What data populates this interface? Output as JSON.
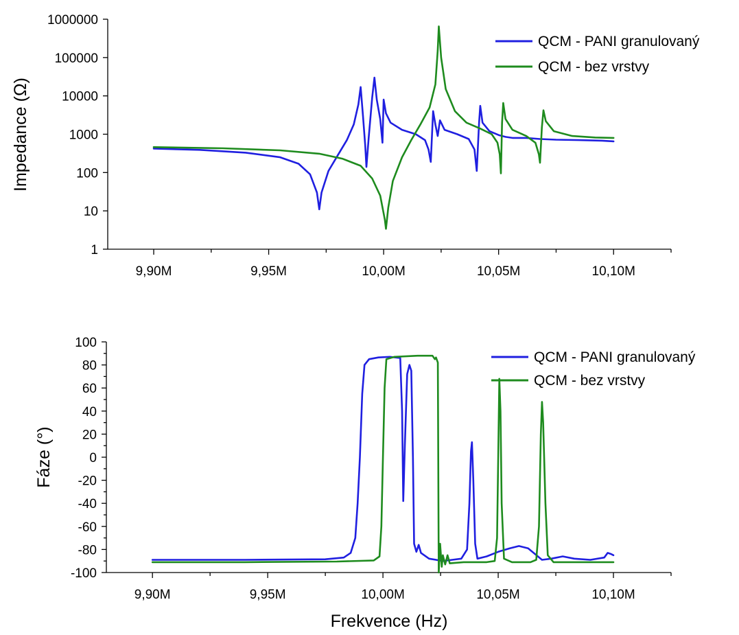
{
  "chart_data": [
    {
      "type": "line",
      "title": "",
      "xlabel": "",
      "ylabel": "Impedance (Ω)",
      "yscale": "log",
      "xlim": [
        9880000,
        10125000
      ],
      "ylim": [
        1,
        1000000
      ],
      "x_ticks": [
        {
          "value": 9900000,
          "label": "9,90M"
        },
        {
          "value": 9950000,
          "label": "9,95M"
        },
        {
          "value": 10000000,
          "label": "10,00M"
        },
        {
          "value": 10050000,
          "label": "10,05M"
        },
        {
          "value": 10100000,
          "label": "10,10M"
        }
      ],
      "y_ticks": [
        {
          "value": 1,
          "label": "1"
        },
        {
          "value": 10,
          "label": "10"
        },
        {
          "value": 100,
          "label": "100"
        },
        {
          "value": 1000,
          "label": "1000"
        },
        {
          "value": 10000,
          "label": "10000"
        },
        {
          "value": 100000,
          "label": "100000"
        },
        {
          "value": 1000000,
          "label": "1000000"
        }
      ],
      "grid": false,
      "legend_position": "top-right",
      "series": [
        {
          "name": "QCM - PANI granulovaný",
          "color": "#1f1fe0",
          "points": [
            [
              9900000,
              420
            ],
            [
              9920000,
              390
            ],
            [
              9940000,
              330
            ],
            [
              9955000,
              250
            ],
            [
              9963000,
              170
            ],
            [
              9968000,
              90
            ],
            [
              9971000,
              30
            ],
            [
              9972000,
              11
            ],
            [
              9973000,
              30
            ],
            [
              9976000,
              110
            ],
            [
              9980000,
              280
            ],
            [
              9984000,
              700
            ],
            [
              9987000,
              1800
            ],
            [
              9989000,
              6000
            ],
            [
              9990000,
              17000
            ],
            [
              9991000,
              3000
            ],
            [
              9992000,
              500
            ],
            [
              9992500,
              140
            ],
            [
              9993500,
              800
            ],
            [
              9995000,
              9000
            ],
            [
              9996000,
              30000
            ],
            [
              9997000,
              8000
            ],
            [
              9998500,
              2500
            ],
            [
              9999500,
              600
            ],
            [
              10000000,
              8000
            ],
            [
              10001000,
              3500
            ],
            [
              10003000,
              2000
            ],
            [
              10008000,
              1300
            ],
            [
              10014000,
              1000
            ],
            [
              10018000,
              700
            ],
            [
              10019500,
              400
            ],
            [
              10020500,
              190
            ],
            [
              10021500,
              4000
            ],
            [
              10022500,
              1800
            ],
            [
              10023500,
              900
            ],
            [
              10024500,
              2300
            ],
            [
              10026500,
              1300
            ],
            [
              10032000,
              1000
            ],
            [
              10037000,
              750
            ],
            [
              10039500,
              400
            ],
            [
              10040500,
              110
            ],
            [
              10041500,
              2000
            ],
            [
              10042000,
              5500
            ],
            [
              10043000,
              2000
            ],
            [
              10046000,
              1200
            ],
            [
              10050000,
              950
            ],
            [
              10053000,
              850
            ],
            [
              10056000,
              800
            ],
            [
              10062000,
              800
            ],
            [
              10068000,
              750
            ],
            [
              10075000,
              720
            ],
            [
              10085000,
              700
            ],
            [
              10095000,
              680
            ],
            [
              10100000,
              650
            ]
          ]
        },
        {
          "name": "QCM - bez vrstvy",
          "color": "#1e8b1e",
          "points": [
            [
              9900000,
              460
            ],
            [
              9930000,
              430
            ],
            [
              9955000,
              380
            ],
            [
              9972000,
              310
            ],
            [
              9982000,
              230
            ],
            [
              9990000,
              150
            ],
            [
              9995000,
              70
            ],
            [
              9998500,
              25
            ],
            [
              10000500,
              6
            ],
            [
              10001000,
              3.4
            ],
            [
              10002000,
              12
            ],
            [
              10004000,
              60
            ],
            [
              10008000,
              250
            ],
            [
              10012000,
              700
            ],
            [
              10016000,
              1800
            ],
            [
              10020000,
              5000
            ],
            [
              10022500,
              20000
            ],
            [
              10023500,
              150000
            ],
            [
              10024000,
              650000
            ],
            [
              10025000,
              100000
            ],
            [
              10027000,
              15000
            ],
            [
              10031000,
              4000
            ],
            [
              10036000,
              2000
            ],
            [
              10042000,
              1400
            ],
            [
              10047000,
              1000
            ],
            [
              10049500,
              600
            ],
            [
              10050500,
              300
            ],
            [
              10051000,
              95
            ],
            [
              10051500,
              2000
            ],
            [
              10052000,
              6500
            ],
            [
              10053000,
              2500
            ],
            [
              10056000,
              1300
            ],
            [
              10062000,
              900
            ],
            [
              10066000,
              600
            ],
            [
              10067500,
              300
            ],
            [
              10068000,
              180
            ],
            [
              10068800,
              1500
            ],
            [
              10069500,
              4200
            ],
            [
              10070500,
              2200
            ],
            [
              10074000,
              1200
            ],
            [
              10082000,
              900
            ],
            [
              10092000,
              820
            ],
            [
              10100000,
              800
            ]
          ]
        }
      ]
    },
    {
      "type": "line",
      "title": "",
      "xlabel": "Frekvence (Hz)",
      "ylabel": "Fáze (°)",
      "yscale": "linear",
      "xlim": [
        9880000,
        10125000
      ],
      "ylim": [
        -100,
        100
      ],
      "x_ticks": [
        {
          "value": 9900000,
          "label": "9,90M"
        },
        {
          "value": 9950000,
          "label": "9,95M"
        },
        {
          "value": 10000000,
          "label": "10,00M"
        },
        {
          "value": 10050000,
          "label": "10,05M"
        },
        {
          "value": 10100000,
          "label": "10,10M"
        }
      ],
      "y_ticks": [
        {
          "value": 100,
          "label": "100"
        },
        {
          "value": 80,
          "label": "80"
        },
        {
          "value": 60,
          "label": "60"
        },
        {
          "value": 40,
          "label": "40"
        },
        {
          "value": 20,
          "label": "20"
        },
        {
          "value": 0,
          "label": "0"
        },
        {
          "value": -20,
          "label": "-20"
        },
        {
          "value": -40,
          "label": "-40"
        },
        {
          "value": -60,
          "label": "-60"
        },
        {
          "value": -80,
          "label": "-80"
        },
        {
          "value": -100,
          "label": "-100"
        }
      ],
      "grid": false,
      "legend_position": "top-right",
      "series": [
        {
          "name": "QCM - PANI granulovaný",
          "color": "#1f1fe0",
          "points": [
            [
              9900000,
              -89
            ],
            [
              9940000,
              -89
            ],
            [
              9975000,
              -88.5
            ],
            [
              9983000,
              -87
            ],
            [
              9986000,
              -83
            ],
            [
              9988000,
              -70
            ],
            [
              9989000,
              -40
            ],
            [
              9990000,
              0
            ],
            [
              9991000,
              55
            ],
            [
              9992000,
              80
            ],
            [
              9994000,
              85
            ],
            [
              9998000,
              86.5
            ],
            [
              10003000,
              87
            ],
            [
              10007500,
              86
            ],
            [
              10008300,
              40
            ],
            [
              10008800,
              -38
            ],
            [
              10009500,
              10
            ],
            [
              10010500,
              72
            ],
            [
              10011500,
              80
            ],
            [
              10012300,
              75
            ],
            [
              10013000,
              0
            ],
            [
              10013500,
              -75
            ],
            [
              10014500,
              -82
            ],
            [
              10015500,
              -76
            ],
            [
              10016500,
              -83
            ],
            [
              10020000,
              -88
            ],
            [
              10026000,
              -90
            ],
            [
              10030000,
              -89
            ],
            [
              10034000,
              -88
            ],
            [
              10036500,
              -80
            ],
            [
              10037500,
              -40
            ],
            [
              10038200,
              5
            ],
            [
              10038600,
              13
            ],
            [
              10039200,
              -20
            ],
            [
              10040000,
              -75
            ],
            [
              10041000,
              -88
            ],
            [
              10045000,
              -86
            ],
            [
              10050000,
              -82
            ],
            [
              10055000,
              -79
            ],
            [
              10059000,
              -77
            ],
            [
              10063000,
              -79
            ],
            [
              10066000,
              -84
            ],
            [
              10069000,
              -89
            ],
            [
              10073000,
              -88
            ],
            [
              10078000,
              -86
            ],
            [
              10083000,
              -88
            ],
            [
              10090000,
              -89
            ],
            [
              10096000,
              -87
            ],
            [
              10097500,
              -83
            ],
            [
              10099000,
              -84
            ],
            [
              10100000,
              -85
            ]
          ]
        },
        {
          "name": "QCM - bez vrstvy",
          "color": "#1e8b1e",
          "points": [
            [
              9900000,
              -91
            ],
            [
              9940000,
              -91
            ],
            [
              9980000,
              -90.5
            ],
            [
              9996000,
              -89.5
            ],
            [
              9998500,
              -86
            ],
            [
              9999300,
              -60
            ],
            [
              10000000,
              0
            ],
            [
              10000700,
              60
            ],
            [
              10001500,
              85
            ],
            [
              10005000,
              87
            ],
            [
              10015000,
              88
            ],
            [
              10021500,
              88
            ],
            [
              10022500,
              85
            ],
            [
              10023000,
              86.5
            ],
            [
              10023800,
              82
            ],
            [
              10024000,
              0
            ],
            [
              10024200,
              -100
            ],
            [
              10024800,
              -75
            ],
            [
              10025500,
              -95
            ],
            [
              10026000,
              -85
            ],
            [
              10027000,
              -93
            ],
            [
              10028000,
              -85
            ],
            [
              10029000,
              -92
            ],
            [
              10035000,
              -91
            ],
            [
              10045000,
              -91
            ],
            [
              10048500,
              -90
            ],
            [
              10049500,
              -70
            ],
            [
              10050000,
              0
            ],
            [
              10050500,
              68
            ],
            [
              10051000,
              40
            ],
            [
              10051500,
              -40
            ],
            [
              10052500,
              -88
            ],
            [
              10056000,
              -91
            ],
            [
              10064000,
              -91
            ],
            [
              10066500,
              -89
            ],
            [
              10067700,
              -60
            ],
            [
              10068500,
              20
            ],
            [
              10069000,
              48
            ],
            [
              10069500,
              30
            ],
            [
              10070500,
              -40
            ],
            [
              10071500,
              -85
            ],
            [
              10074000,
              -91
            ],
            [
              10090000,
              -91
            ],
            [
              10100000,
              -91
            ]
          ]
        }
      ]
    }
  ]
}
